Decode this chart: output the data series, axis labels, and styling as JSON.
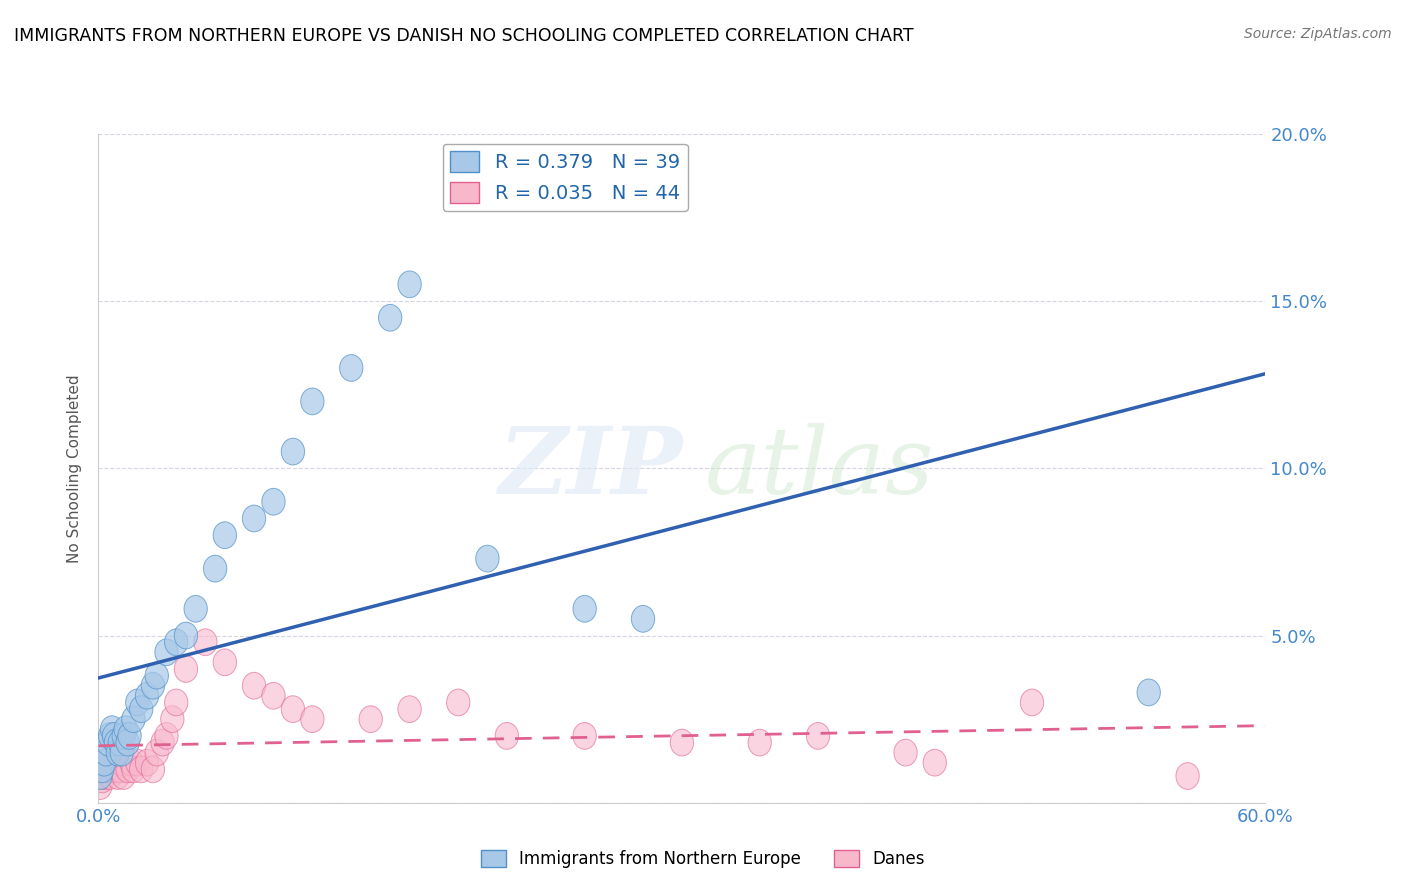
{
  "title": "IMMIGRANTS FROM NORTHERN EUROPE VS DANISH NO SCHOOLING COMPLETED CORRELATION CHART",
  "source": "Source: ZipAtlas.com",
  "ylabel": "No Schooling Completed",
  "xlim": [
    0.0,
    0.6
  ],
  "ylim": [
    0.0,
    0.2
  ],
  "yticks": [
    0.0,
    0.05,
    0.1,
    0.15,
    0.2
  ],
  "yticklabels_right": [
    "",
    "5.0%",
    "10.0%",
    "15.0%",
    "20.0%"
  ],
  "blue_color": "#a8c8e8",
  "blue_edge_color": "#5090c8",
  "pink_color": "#f8b8cc",
  "pink_edge_color": "#e06090",
  "blue_line_color": "#3060b0",
  "pink_line_color": "#e06090",
  "legend_r1": "R = 0.379",
  "legend_n1": "N = 39",
  "legend_r2": "R = 0.035",
  "legend_n2": "N = 44",
  "blue_x": [
    0.001,
    0.002,
    0.003,
    0.004,
    0.005,
    0.006,
    0.007,
    0.008,
    0.009,
    0.01,
    0.011,
    0.012,
    0.013,
    0.014,
    0.015,
    0.016,
    0.018,
    0.02,
    0.022,
    0.025,
    0.028,
    0.03,
    0.035,
    0.04,
    0.045,
    0.05,
    0.06,
    0.065,
    0.08,
    0.09,
    0.1,
    0.11,
    0.13,
    0.15,
    0.16,
    0.2,
    0.25,
    0.28,
    0.54
  ],
  "blue_y": [
    0.008,
    0.01,
    0.012,
    0.015,
    0.018,
    0.02,
    0.022,
    0.02,
    0.018,
    0.015,
    0.018,
    0.015,
    0.02,
    0.022,
    0.018,
    0.02,
    0.025,
    0.03,
    0.028,
    0.032,
    0.035,
    0.038,
    0.045,
    0.048,
    0.05,
    0.058,
    0.07,
    0.08,
    0.085,
    0.09,
    0.105,
    0.12,
    0.13,
    0.145,
    0.155,
    0.073,
    0.058,
    0.055,
    0.033
  ],
  "pink_x": [
    0.001,
    0.002,
    0.003,
    0.004,
    0.005,
    0.006,
    0.007,
    0.008,
    0.009,
    0.01,
    0.011,
    0.012,
    0.013,
    0.015,
    0.017,
    0.018,
    0.02,
    0.022,
    0.025,
    0.028,
    0.03,
    0.033,
    0.035,
    0.038,
    0.04,
    0.045,
    0.055,
    0.065,
    0.08,
    0.09,
    0.1,
    0.11,
    0.14,
    0.16,
    0.185,
    0.21,
    0.25,
    0.3,
    0.34,
    0.37,
    0.415,
    0.43,
    0.48,
    0.56
  ],
  "pink_y": [
    0.005,
    0.007,
    0.008,
    0.01,
    0.012,
    0.008,
    0.01,
    0.012,
    0.01,
    0.008,
    0.01,
    0.012,
    0.008,
    0.01,
    0.012,
    0.01,
    0.012,
    0.01,
    0.012,
    0.01,
    0.015,
    0.018,
    0.02,
    0.025,
    0.03,
    0.04,
    0.048,
    0.042,
    0.035,
    0.032,
    0.028,
    0.025,
    0.025,
    0.028,
    0.03,
    0.02,
    0.02,
    0.018,
    0.018,
    0.02,
    0.015,
    0.012,
    0.03,
    0.008
  ]
}
